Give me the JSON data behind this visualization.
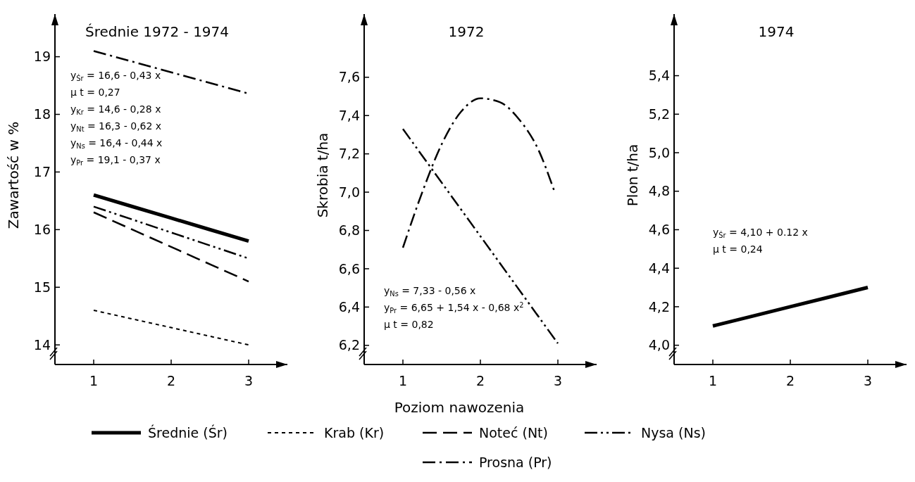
{
  "chart_data": [
    {
      "type": "line",
      "title": "Średnie 1972 - 1974",
      "ylabel": "Zawartość w %",
      "x": [
        1,
        2,
        3
      ],
      "xlim": [
        0.5,
        3.5
      ],
      "xticks": [
        1,
        2,
        3
      ],
      "ylim": [
        13.66,
        19.74
      ],
      "yticks": [
        14,
        15,
        16,
        17,
        18,
        19
      ],
      "legend": "bottom",
      "marker": "none",
      "annotations": [
        "y$_{Śr}$ = 16,6 - 0,43 x",
        "μ t = 0,27",
        "y$_{Kr}$ = 14,6 - 0,28 x",
        "y$_{Nt}$ = 16,3 - 0,62 x",
        "y$_{Ns}$ = 16,4 - 0,44 x",
        "y$_{Pr}$ = 19,1 - 0,37 x"
      ],
      "series": [
        {
          "name": "Średnie (Śr)",
          "color": "#000000",
          "line_style": "solid",
          "values": [
            16.6,
            16.2,
            15.8
          ]
        },
        {
          "name": "Krab (Kr)",
          "color": "#000000",
          "line_style": "dotted",
          "values": [
            14.6,
            14.3,
            14.0
          ]
        },
        {
          "name": "Noteć (Nt)",
          "color": "#000000",
          "line_style": "dashed",
          "values": [
            16.3,
            15.7,
            15.1
          ]
        },
        {
          "name": "Nysa (Ns)",
          "color": "#000000",
          "line_style": "dashdotdot",
          "values": [
            16.4,
            15.95,
            15.5
          ]
        },
        {
          "name": "Prosna (Pr)",
          "color": "#000000",
          "line_style": "dashdot",
          "values": [
            19.1,
            18.73,
            18.36
          ]
        }
      ]
    },
    {
      "type": "line",
      "title": "1972",
      "ylabel": "Skrobia t/ha",
      "xlabel": "Poziom nawozenia",
      "xlim": [
        0.5,
        3.5
      ],
      "xticks": [
        1,
        2,
        3
      ],
      "ylim": [
        6.1,
        7.93
      ],
      "yticks": [
        {
          "value": 6.2,
          "label": "6,2"
        },
        {
          "value": 6.4,
          "label": "6,4"
        },
        {
          "value": 6.6,
          "label": "6,6"
        },
        {
          "value": 6.8,
          "label": "6,8"
        },
        {
          "value": 7.0,
          "label": "7,0"
        },
        {
          "value": 7.2,
          "label": "7,2"
        },
        {
          "value": 7.4,
          "label": "7,4"
        },
        {
          "value": 7.6,
          "label": "7,6"
        }
      ],
      "marker": "none",
      "annotations": [
        "y$_{Ns}$ = 7,33 - 0,56 x",
        "y$_{Pr}$ = 6,65 + 1,54 x - 0,68 x$^{2}$",
        "μ t = 0,82"
      ],
      "series": [
        {
          "color": "#000000",
          "line_style": "dashdotdot",
          "x": [
            1,
            2,
            3
          ],
          "values": [
            7.33,
            6.77,
            6.21
          ]
        },
        {
          "color": "#000000",
          "line_style": "dashdot",
          "x": [
            1,
            1.25,
            1.5,
            1.75,
            2,
            2.25,
            2.5,
            2.75,
            2.95
          ],
          "values": [
            6.71,
            7.0,
            7.25,
            7.42,
            7.49,
            7.47,
            7.38,
            7.22,
            7.01
          ]
        }
      ]
    },
    {
      "type": "line",
      "title": "1974",
      "ylabel": "Plon t/ha",
      "x": [
        1,
        2,
        3
      ],
      "xlim": [
        0.5,
        3.5
      ],
      "xticks": [
        1,
        2,
        3
      ],
      "ylim": [
        3.9,
        5.72
      ],
      "yticks": [
        {
          "value": 4.0,
          "label": "4,0"
        },
        {
          "value": 4.2,
          "label": "4,2"
        },
        {
          "value": 4.4,
          "label": "4,4"
        },
        {
          "value": 4.6,
          "label": "4,6"
        },
        {
          "value": 4.8,
          "label": "4,8"
        },
        {
          "value": 5.0,
          "label": "5,0"
        },
        {
          "value": 5.2,
          "label": "5,2"
        },
        {
          "value": 5.4,
          "label": "5,4"
        }
      ],
      "marker": "none",
      "annotations": [
        "y$_{Śr}$ = 4,10 + 0.12 x",
        "μ t = 0,24"
      ],
      "series": [
        {
          "color": "#000000",
          "line_style": "solid",
          "values": [
            4.1,
            4.2,
            4.3
          ]
        }
      ]
    }
  ]
}
